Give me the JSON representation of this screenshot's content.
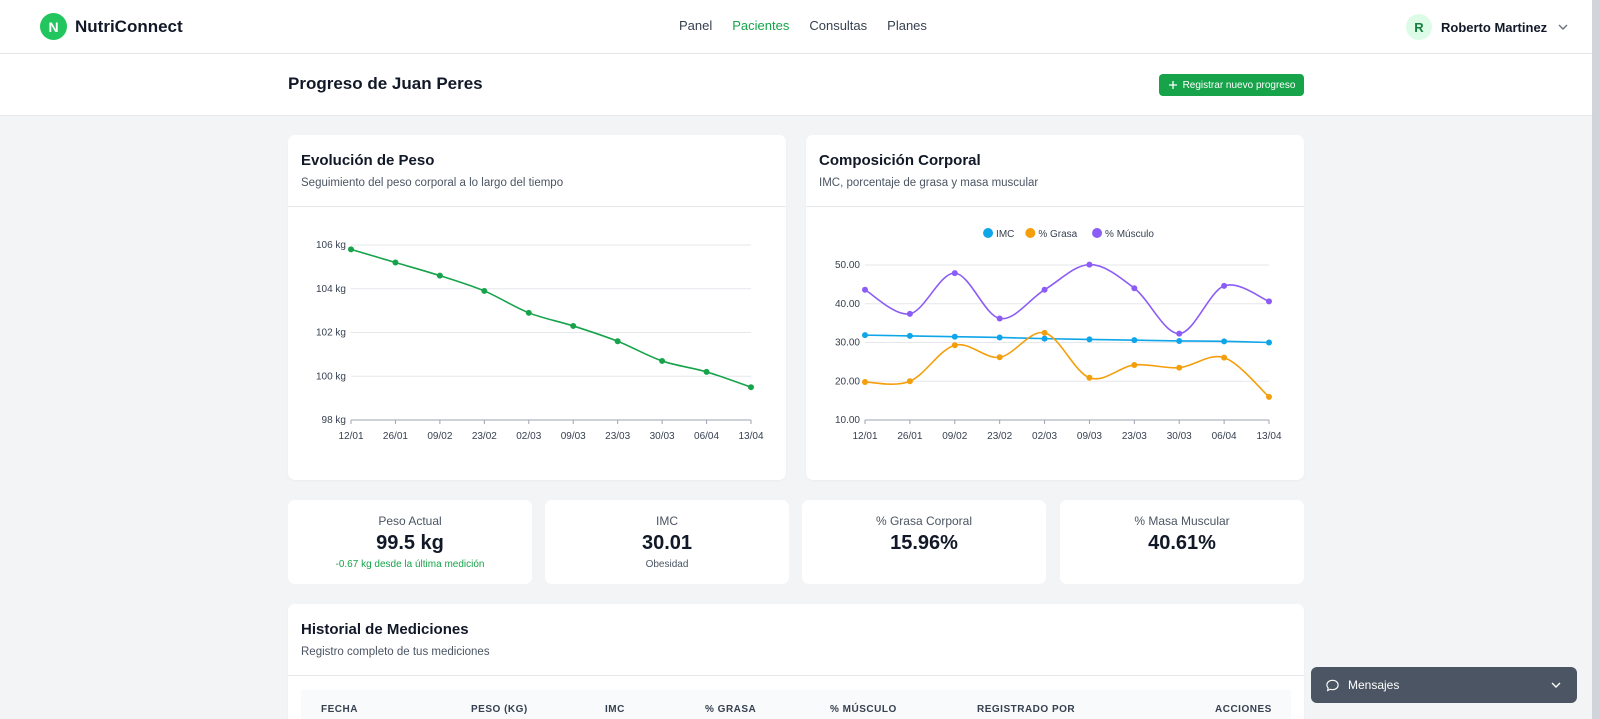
{
  "brand": {
    "logo_letter": "N",
    "name": "NutriConnect"
  },
  "nav": {
    "items": [
      {
        "label": "Panel",
        "active": false
      },
      {
        "label": "Pacientes",
        "active": true
      },
      {
        "label": "Consultas",
        "active": false
      },
      {
        "label": "Planes",
        "active": false
      }
    ]
  },
  "user": {
    "initial": "R",
    "name": "Roberto Martinez",
    "icon": "chevron-down-icon"
  },
  "page": {
    "title": "Progreso de Juan Peres",
    "primary_button": "Registrar nuevo progreso",
    "primary_icon": "plus-icon"
  },
  "colors": {
    "accent": "#16a34a",
    "imc": "#0ea5e9",
    "grasa": "#f59e0b",
    "musculo": "#8b5cf6"
  },
  "weight_card": {
    "title": "Evolución de Peso",
    "subtitle": "Seguimiento del peso corporal a lo largo del tiempo"
  },
  "composition_card": {
    "title": "Composición Corporal",
    "subtitle": "IMC, porcentaje de grasa y masa muscular"
  },
  "chart_data": [
    {
      "type": "line",
      "title": "Evolución de Peso",
      "x": [
        "12/01",
        "26/01",
        "09/02",
        "23/02",
        "02/03",
        "09/03",
        "23/03",
        "30/03",
        "06/04",
        "13/04"
      ],
      "y_ticks": [
        "98 kg",
        "100 kg",
        "102 kg",
        "104 kg",
        "106 kg"
      ],
      "ylim": [
        98,
        106
      ],
      "grid": true,
      "series": [
        {
          "color": "#16a34a",
          "values": [
            105.8,
            105.2,
            104.6,
            103.9,
            102.9,
            102.3,
            101.6,
            100.7,
            100.2,
            99.5
          ]
        }
      ]
    },
    {
      "type": "line",
      "title": "Composición Corporal",
      "x": [
        "12/01",
        "26/01",
        "09/02",
        "23/02",
        "02/03",
        "09/03",
        "23/03",
        "30/03",
        "06/04",
        "13/04"
      ],
      "y_ticks": [
        "10.00",
        "20.00",
        "30.00",
        "40.00",
        "50.00"
      ],
      "ylim": [
        10,
        50
      ],
      "grid": true,
      "legend": "top-center",
      "series": [
        {
          "name": "IMC",
          "color": "#0ea5e9",
          "values": [
            31.9,
            31.7,
            31.5,
            31.3,
            31.0,
            30.8,
            30.6,
            30.4,
            30.3,
            30.0
          ]
        },
        {
          "name": "% Grasa",
          "color": "#f59e0b",
          "values": [
            19.8,
            20.0,
            29.3,
            26.2,
            32.5,
            20.9,
            24.2,
            23.5,
            26.1,
            15.96
          ]
        },
        {
          "name": "% Músculo",
          "color": "#8b5cf6",
          "values": [
            43.6,
            37.4,
            47.9,
            36.2,
            43.6,
            50.1,
            44.0,
            32.3,
            44.6,
            40.61
          ]
        }
      ]
    }
  ],
  "stats": [
    {
      "label": "Peso Actual",
      "value": "99.5 kg",
      "note": "-0.67 kg desde la última medición"
    },
    {
      "label": "IMC",
      "value": "30.01",
      "note": "Obesidad"
    },
    {
      "label": "% Grasa Corporal",
      "value": "15.96%",
      "note": ""
    },
    {
      "label": "% Masa Muscular",
      "value": "40.61%",
      "note": ""
    }
  ],
  "history": {
    "title": "Historial de Mediciones",
    "subtitle": "Registro completo de tus mediciones",
    "columns": [
      "FECHA",
      "PESO (KG)",
      "IMC",
      "% GRASA",
      "% MÚSCULO",
      "REGISTRADO POR",
      "ACCIONES"
    ]
  },
  "messages": {
    "label": "Mensajes",
    "icon": "chat-icon"
  }
}
